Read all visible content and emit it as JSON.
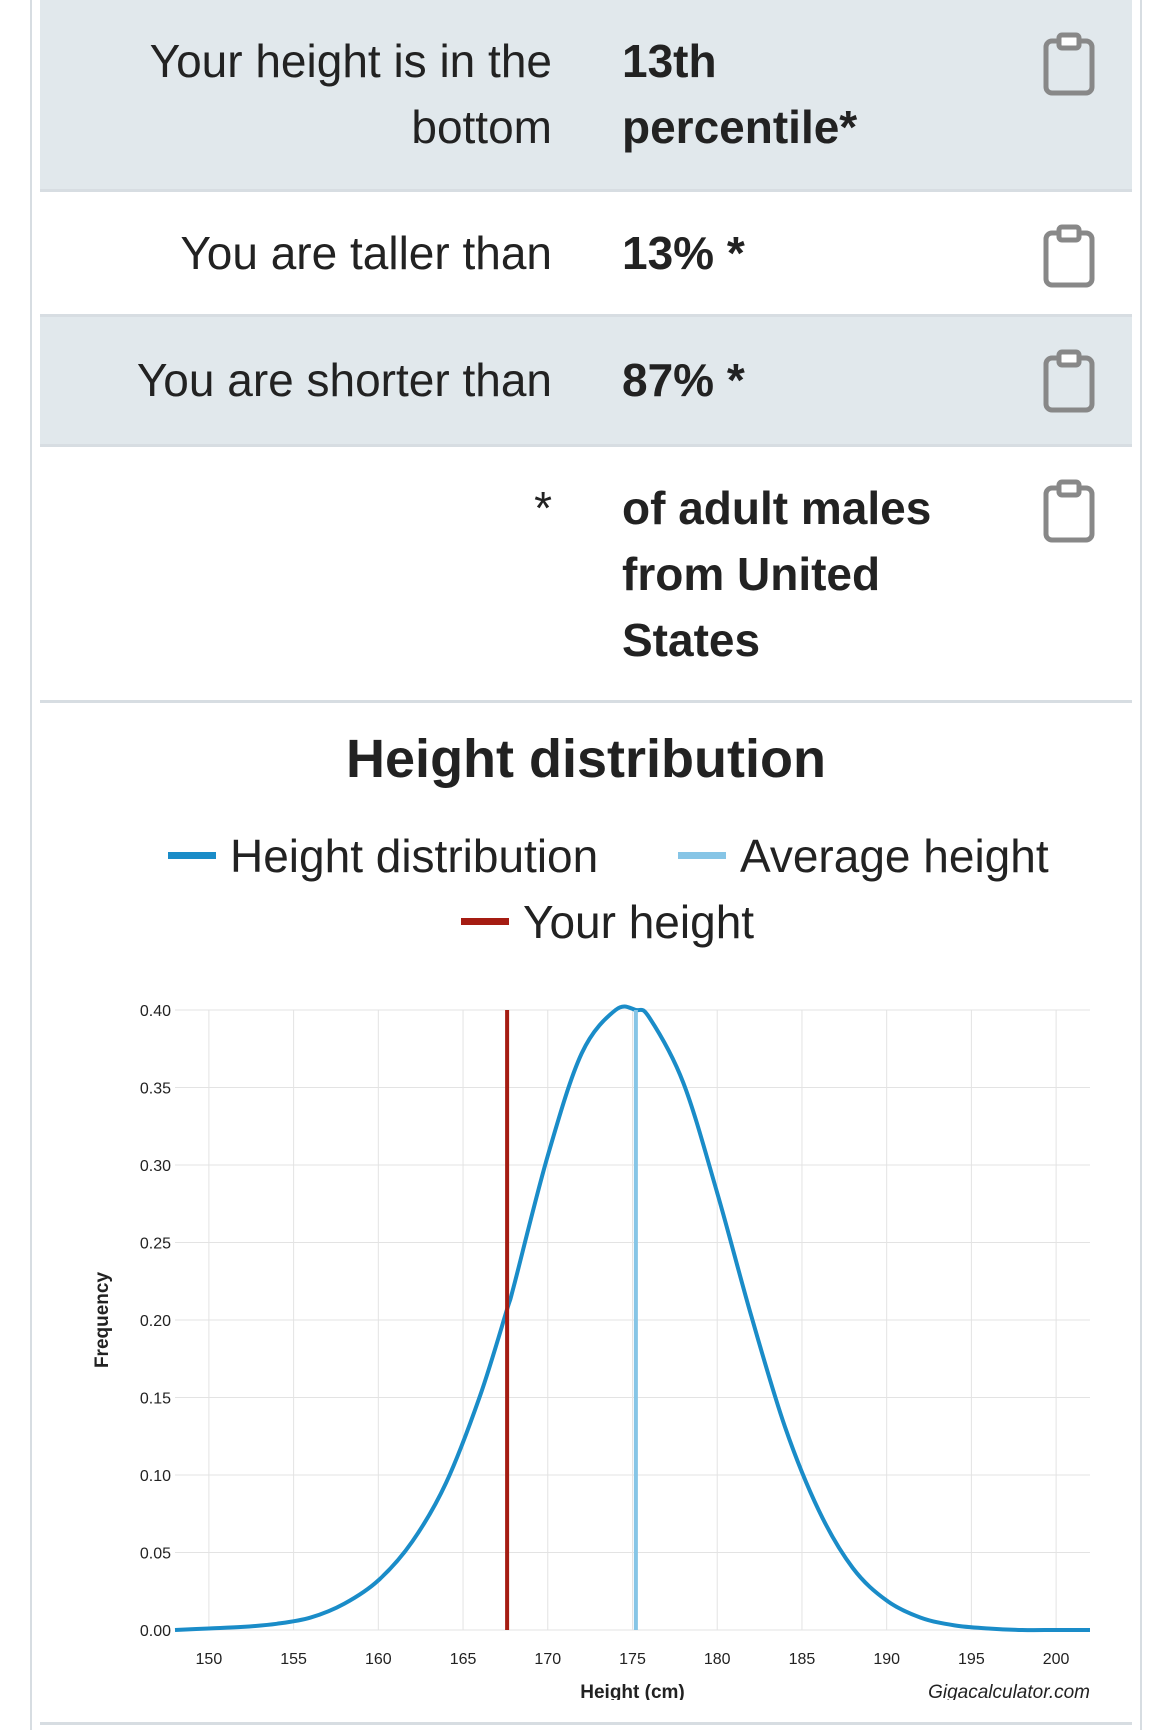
{
  "results": {
    "percentile": {
      "label": "Your height is in the bottom",
      "value": "13th percentile*"
    },
    "taller": {
      "label": "You are taller than",
      "value": "13% *"
    },
    "shorter": {
      "label": "You are shorter than",
      "value": "87% *"
    },
    "footnote": {
      "label": "*",
      "value": "of adult males from United States"
    }
  },
  "icons": {
    "copy": "clipboard-icon"
  },
  "colors": {
    "row_shaded": "#e1e8ec",
    "distribution": "#1a8cc8",
    "average": "#86c5e6",
    "your_height": "#a51c12"
  },
  "chart_data": {
    "type": "line",
    "title": "Height distribution",
    "xlabel": "Height (cm)",
    "ylabel": "Frequency",
    "credit": "Gigacalculator.com",
    "xlim": [
      148,
      202
    ],
    "ylim": [
      0,
      0.4
    ],
    "xticks": [
      150,
      155,
      160,
      165,
      170,
      175,
      180,
      185,
      190,
      195,
      200
    ],
    "yticks": [
      "0.00",
      "0.05",
      "0.10",
      "0.15",
      "0.20",
      "0.25",
      "0.30",
      "0.35",
      "0.40"
    ],
    "legend_position": "top-center",
    "grid": true,
    "series": [
      {
        "name": "Height distribution",
        "x": [
          148,
          150,
          152,
          154,
          156,
          158,
          160,
          162,
          164,
          166,
          167.6,
          168,
          170,
          172,
          174,
          175.2,
          176,
          178,
          180,
          182,
          184,
          186,
          188,
          190,
          192,
          194,
          196,
          198,
          200,
          202
        ],
        "y": [
          0.0,
          0.001,
          0.002,
          0.004,
          0.008,
          0.017,
          0.032,
          0.057,
          0.095,
          0.151,
          0.207,
          0.222,
          0.306,
          0.372,
          0.4,
          0.4,
          0.395,
          0.353,
          0.282,
          0.203,
          0.131,
          0.077,
          0.04,
          0.019,
          0.008,
          0.003,
          0.001,
          0.0,
          0.0,
          0.0
        ]
      },
      {
        "name": "Average height",
        "x": 175.2
      },
      {
        "name": "Your height",
        "x": 167.6
      }
    ]
  }
}
